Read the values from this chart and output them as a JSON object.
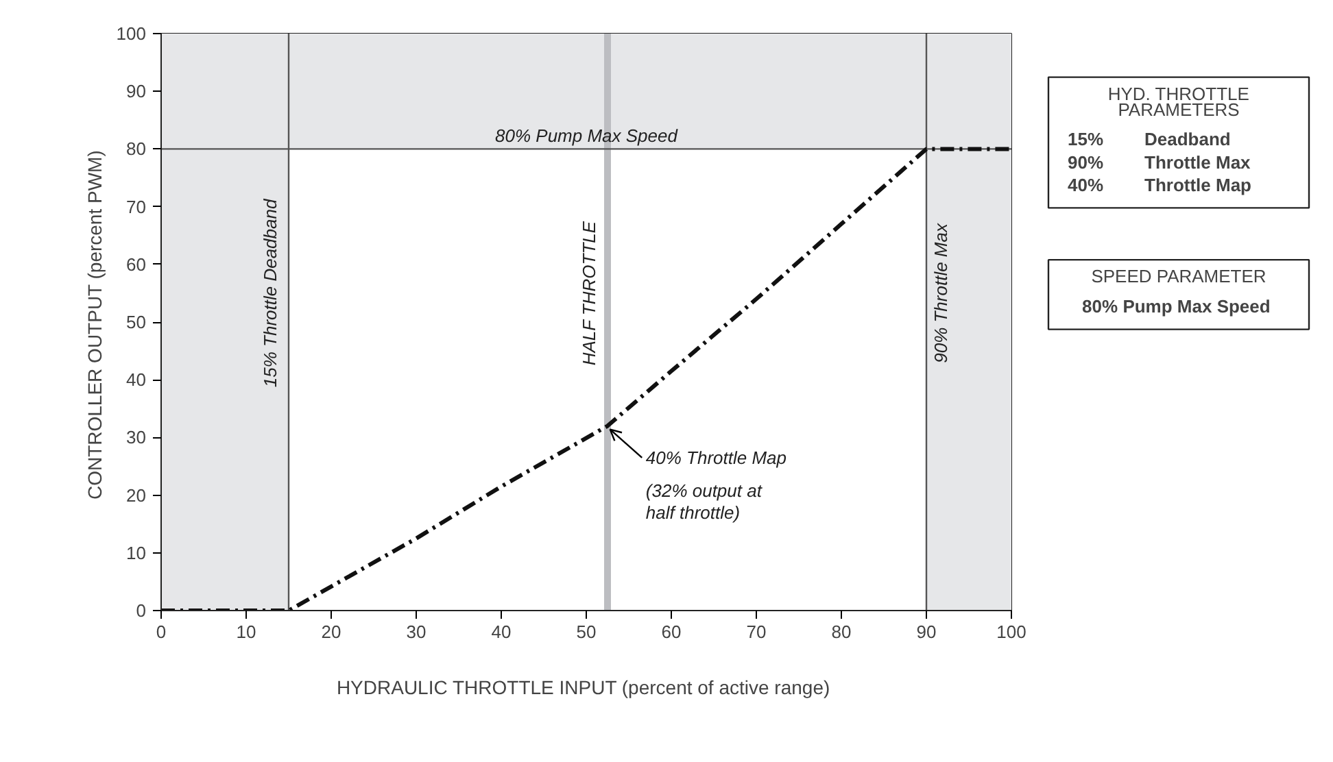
{
  "chart_data": {
    "type": "line",
    "xlabel": "HYDRAULIC THROTTLE INPUT  (percent of active range)",
    "ylabel": "CONTROLLER OUTPUT  (percent PWM)",
    "x": [
      0,
      15,
      30,
      40,
      52.5,
      60,
      70,
      80,
      90,
      100
    ],
    "series": [
      {
        "color": "#111111",
        "values": [
          0,
          0,
          12.5,
          21.5,
          32,
          41.5,
          54,
          67,
          80,
          80
        ]
      }
    ],
    "xlim": [
      0,
      100
    ],
    "ylim": [
      0,
      100
    ],
    "xticks": [
      0,
      10,
      20,
      30,
      40,
      50,
      60,
      70,
      80,
      90,
      100
    ],
    "yticks": [
      0,
      10,
      20,
      30,
      40,
      50,
      60,
      70,
      80,
      90,
      100
    ],
    "grid": false,
    "marker": "none",
    "line_style": "dashed",
    "bands": [
      {
        "axis": "x",
        "from": 0,
        "to": 15,
        "color": "#e6e7e9"
      },
      {
        "axis": "x",
        "from": 90,
        "to": 100,
        "color": "#e6e7e9"
      },
      {
        "axis": "y",
        "from": 80,
        "to": 100,
        "color": "#e6e7e9"
      }
    ],
    "ref_lines": [
      {
        "axis": "x",
        "value": 15,
        "label": "15% Throttle Deadband",
        "color": "#555555"
      },
      {
        "axis": "x",
        "value": 52.5,
        "label": "HALF THROTTLE",
        "color": "#bcbdc1"
      },
      {
        "axis": "x",
        "value": 90,
        "label": "90% Throttle Max",
        "color": "#555555"
      },
      {
        "axis": "y",
        "value": 80,
        "label": "80% Pump Max Speed",
        "color": "#555555"
      }
    ],
    "annotations": [
      {
        "text": "40% Throttle Map\n(32% output at half throttle)",
        "x": 52.5,
        "y": 32
      },
      "HYD. THROTTLE\nPARAMETERS\n\n15%    Deadband\n90%    Throttle Max\n40%    Throttle Map",
      "SPEED PARAMETER\n\n80%  Pump Max Speed"
    ]
  }
}
